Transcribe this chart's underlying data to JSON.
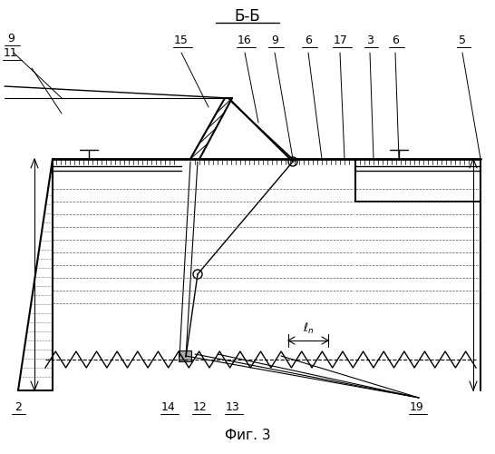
{
  "title": "Б-Б",
  "fig_label": "Фиг. 3",
  "bg_color": "#ffffff",
  "line_color": "#000000",
  "figsize": [
    5.46,
    5.0
  ],
  "dpi": 100
}
